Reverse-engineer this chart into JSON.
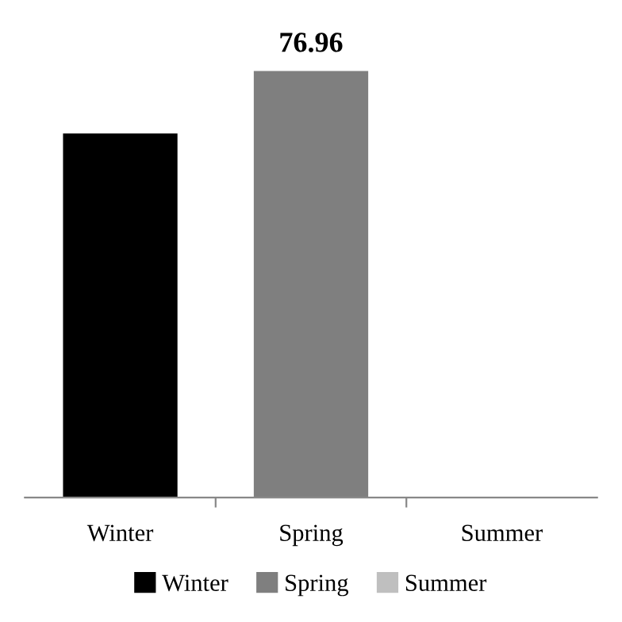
{
  "chart_data": {
    "type": "bar",
    "categories": [
      "Winter",
      "Spring",
      "Summer"
    ],
    "series": [
      {
        "name": "Winter",
        "color": "#000000",
        "values": [
          65.7,
          null,
          null
        ],
        "value_labels": [
          null,
          null,
          null
        ]
      },
      {
        "name": "Spring",
        "color": "#7f7f7f",
        "values": [
          null,
          76.96,
          null
        ],
        "value_labels": [
          null,
          "76.96",
          null
        ]
      },
      {
        "name": "Summer",
        "color": "#bfbfbf",
        "values": [
          null,
          null,
          null
        ],
        "value_labels": [
          null,
          null,
          null
        ]
      }
    ],
    "legend": "bottom",
    "grid": false
  }
}
